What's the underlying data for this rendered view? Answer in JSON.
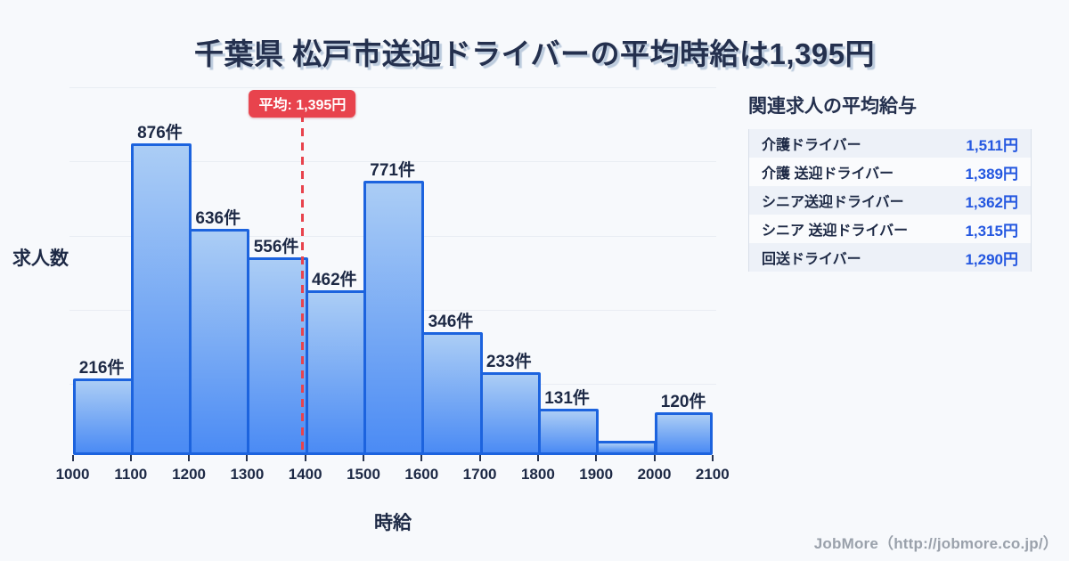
{
  "title": "千葉県 松戸市送迎ドライバーの平均時給は1,395円",
  "chart_data": {
    "type": "bar",
    "title": "千葉県 松戸市送迎ドライバーの平均時給は1,395円",
    "xlabel": "時給",
    "ylabel": "求人数",
    "x_tick_labels": [
      "1000",
      "1100",
      "1200",
      "1300",
      "1400",
      "1500",
      "1600",
      "1700",
      "1800",
      "1900",
      "2000",
      "2100"
    ],
    "categories": [
      "1000-1100",
      "1100-1200",
      "1200-1300",
      "1300-1400",
      "1400-1500",
      "1500-1600",
      "1600-1700",
      "1700-1800",
      "1800-1900",
      "1900-2000",
      "2000-2100"
    ],
    "values": [
      216,
      876,
      636,
      556,
      462,
      771,
      346,
      233,
      131,
      40,
      120
    ],
    "bar_labels": [
      "216件",
      "876件",
      "636件",
      "556件",
      "462件",
      "771件",
      "346件",
      "233件",
      "131件",
      "",
      "120件"
    ],
    "average": {
      "value": 1395,
      "label": "平均: 1,395円"
    },
    "ylim": [
      0,
      1040
    ],
    "grid": true,
    "legend": "none"
  },
  "panel": {
    "title": "関連求人の平均給与",
    "rows": [
      {
        "label": "介護ドライバー",
        "value": "1,511円"
      },
      {
        "label": "介護 送迎ドライバー",
        "value": "1,389円"
      },
      {
        "label": "シニア送迎ドライバー",
        "value": "1,362円"
      },
      {
        "label": "シニア 送迎ドライバー",
        "value": "1,315円"
      },
      {
        "label": "回送ドライバー",
        "value": "1,290円"
      }
    ]
  },
  "footer": {
    "credit": "JobMore（http://jobmore.co.jp/）"
  },
  "colors": {
    "background": "#f7f9fc",
    "title_text": "#24304e",
    "bar_border": "#1c63de",
    "bar_fill_top": "#abcdf5",
    "bar_fill_bottom": "#4b8bf4",
    "average_red": "#e8434d",
    "value_blue": "#2457e0",
    "gridline": "#e9edf3",
    "footer_gray": "#9aa1ab"
  }
}
